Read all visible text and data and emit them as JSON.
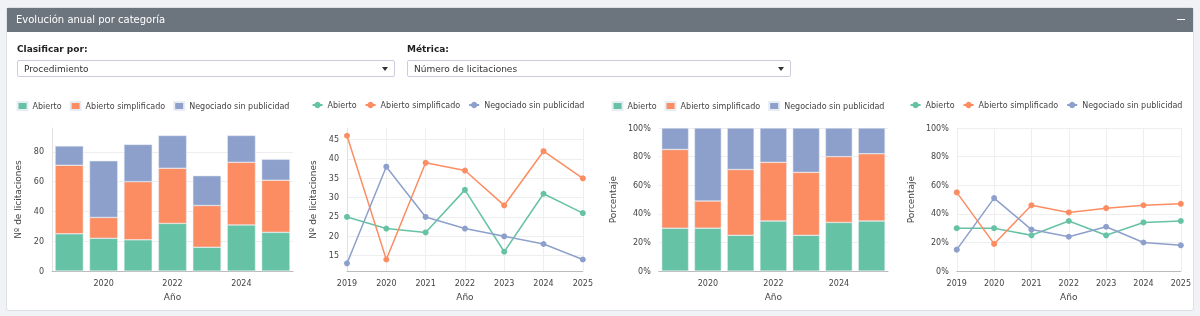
{
  "chart_data": [
    {
      "type": "other",
      "title": "Evolución anual por categoría",
      "annotations": [
        "Clasificar por:",
        "Procedimiento",
        "Métrica:",
        "Número de licitaciones"
      ]
    },
    {
      "type": "bar",
      "stacked": true,
      "categories": [
        null,
        "2020",
        null,
        "2022",
        null,
        "2024",
        null
      ],
      "xlabel": "Año",
      "ylabel": "Nº de licitaciones",
      "ylim": [
        0,
        96
      ],
      "yticks": [
        0,
        20,
        40,
        60,
        80
      ],
      "grid": "y",
      "legend": "top",
      "series": [
        {
          "name": "Abierto",
          "color": "#66c2a5",
          "values": [
            25,
            22,
            21,
            32,
            16,
            31,
            26
          ]
        },
        {
          "name": "Abierto simplificado",
          "color": "#fc8d62",
          "values": [
            46,
            14,
            39,
            37,
            28,
            42,
            35
          ]
        },
        {
          "name": "Negociado sin publicidad",
          "color": "#8da0cb",
          "values": [
            13,
            38,
            25,
            22,
            20,
            18,
            14
          ]
        }
      ]
    },
    {
      "type": "line",
      "marker": "circle",
      "categories": [
        "2019",
        "2020",
        "2021",
        "2022",
        "2023",
        "2024",
        "2025"
      ],
      "xlabel": "Año",
      "ylabel": "Nº de licitaciones",
      "ylim": [
        11,
        48
      ],
      "yticks": [
        15,
        20,
        25,
        30,
        35,
        40,
        45
      ],
      "grid": true,
      "legend": "top",
      "series": [
        {
          "name": "Abierto",
          "color": "#66c2a5",
          "values": [
            25,
            22,
            21,
            32,
            16,
            31,
            26
          ]
        },
        {
          "name": "Abierto simplificado",
          "color": "#fc8d62",
          "values": [
            46,
            14,
            39,
            37,
            28,
            42,
            35
          ]
        },
        {
          "name": "Negociado sin publicidad",
          "color": "#8da0cb",
          "values": [
            13,
            38,
            25,
            22,
            20,
            18,
            14
          ]
        }
      ]
    },
    {
      "type": "bar",
      "stacked": true,
      "categories": [
        null,
        "2020",
        null,
        "2022",
        null,
        "2024",
        null
      ],
      "xlabel": "Año",
      "ylabel": "Porcentaje",
      "ylim": [
        0,
        100
      ],
      "yticks": [
        {
          "value": 0,
          "label": "0%"
        },
        {
          "value": 20,
          "label": "20%"
        },
        {
          "value": 40,
          "label": "40%"
        },
        {
          "value": 60,
          "label": "60%"
        },
        {
          "value": 80,
          "label": "80%"
        },
        {
          "value": 100,
          "label": "100%"
        }
      ],
      "grid": "y",
      "legend": "top",
      "series": [
        {
          "name": "Abierto",
          "color": "#66c2a5",
          "values": [
            30,
            30,
            25,
            35,
            25,
            34,
            35
          ]
        },
        {
          "name": "Abierto simplificado",
          "color": "#fc8d62",
          "values": [
            55,
            19,
            46,
            41,
            44,
            46,
            47
          ]
        },
        {
          "name": "Negociado sin publicidad",
          "color": "#8da0cb",
          "values": [
            15,
            51,
            29,
            24,
            31,
            20,
            18
          ]
        }
      ]
    },
    {
      "type": "line",
      "marker": "circle",
      "categories": [
        "2019",
        "2020",
        "2021",
        "2022",
        "2023",
        "2024",
        "2025"
      ],
      "xlabel": "Año",
      "ylabel": "Porcentaje",
      "ylim": [
        0,
        100
      ],
      "yticks": [
        {
          "value": 0,
          "label": "0%"
        },
        {
          "value": 20,
          "label": "20%"
        },
        {
          "value": 40,
          "label": "40%"
        },
        {
          "value": 60,
          "label": "60%"
        },
        {
          "value": 80,
          "label": "80%"
        },
        {
          "value": 100,
          "label": "100%"
        }
      ],
      "grid": true,
      "legend": "top",
      "series": [
        {
          "name": "Abierto",
          "color": "#66c2a5",
          "values": [
            30,
            30,
            25,
            35,
            25,
            34,
            35
          ]
        },
        {
          "name": "Abierto simplificado",
          "color": "#fc8d62",
          "values": [
            55,
            19,
            46,
            41,
            44,
            46,
            47
          ]
        },
        {
          "name": "Negociado sin publicidad",
          "color": "#8da0cb",
          "values": [
            15,
            51,
            29,
            24,
            31,
            20,
            18
          ]
        }
      ]
    }
  ]
}
